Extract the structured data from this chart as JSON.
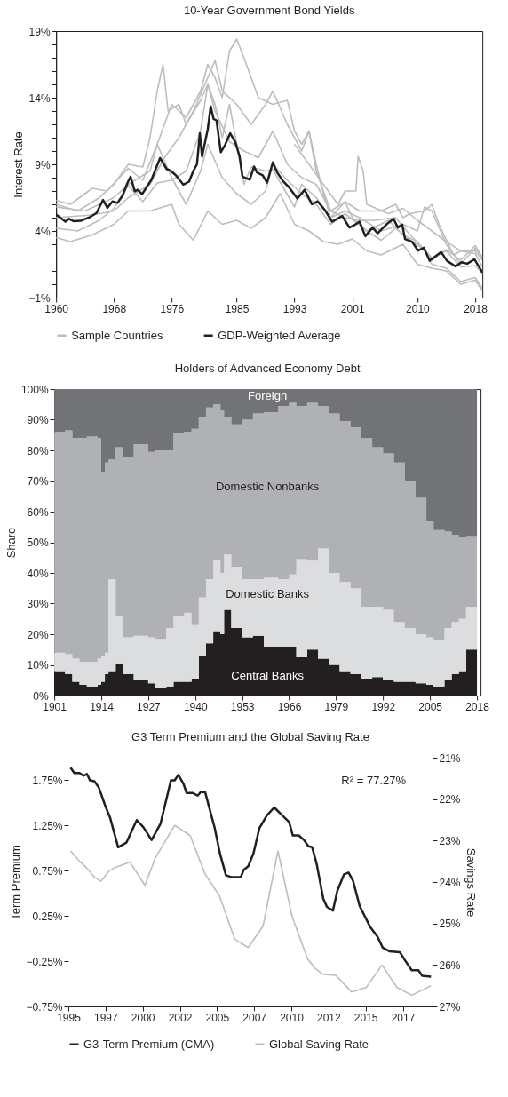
{
  "chart_data": [
    {
      "type": "line",
      "title": "10-Year Government Bond Yields",
      "ylabel": "Interest Rate",
      "legend": "bottom",
      "xlim": [
        1960,
        2019
      ],
      "xticks": [
        1960,
        1968,
        1976,
        1985,
        1993,
        2001,
        2010,
        2018
      ],
      "ylim": [
        -1,
        19
      ],
      "yticks": [
        {
          "value": -1,
          "label": "−1%"
        },
        {
          "value": 0,
          "label": null
        },
        {
          "value": 1,
          "label": null
        },
        {
          "value": 2,
          "label": null
        },
        {
          "value": 3,
          "label": null
        },
        {
          "value": 4,
          "label": "4%"
        },
        {
          "value": 5,
          "label": null
        },
        {
          "value": 6,
          "label": null
        },
        {
          "value": 7,
          "label": null
        },
        {
          "value": 8,
          "label": null
        },
        {
          "value": 9,
          "label": "9%"
        },
        {
          "value": 10,
          "label": null
        },
        {
          "value": 11,
          "label": null
        },
        {
          "value": 12,
          "label": null
        },
        {
          "value": 13,
          "label": null
        },
        {
          "value": 14,
          "label": "14%"
        },
        {
          "value": 15,
          "label": null
        },
        {
          "value": 16,
          "label": null
        },
        {
          "value": 17,
          "label": null
        },
        {
          "value": 18,
          "label": null
        },
        {
          "value": 19,
          "label": "19%"
        }
      ],
      "series": [
        {
          "name": "Sample Countries",
          "color": "#bcbdc0",
          "x": [
            1960,
            1964,
            1968,
            1970,
            1973,
            1974,
            1976,
            1978,
            1980,
            1981,
            1982,
            1983,
            1984,
            1985,
            1986,
            1987,
            1988,
            1990,
            1992,
            1993,
            1994,
            1995,
            1996,
            1997,
            1998,
            2000,
            2002,
            2005,
            2008,
            2010,
            2011,
            2012,
            2014,
            2016,
            2018,
            2019
          ],
          "values": [
            5.8,
            5.5,
            6.5,
            7.5,
            8.5,
            10.5,
            13.5,
            12.5,
            14.5,
            16.5,
            15.5,
            14,
            17.5,
            18.4,
            17,
            15.5,
            14,
            13.5,
            13.8,
            11.5,
            10.5,
            11.5,
            9,
            6.8,
            5,
            5.5,
            5,
            4,
            4.5,
            4,
            5.8,
            5.5,
            3,
            1.5,
            2.7,
            2
          ]
        },
        {
          "color": "#bcbdc0",
          "x": [
            1960,
            1963,
            1966,
            1968,
            1970,
            1972,
            1973,
            1974,
            1974.8,
            1975.5,
            1977,
            1978,
            1980,
            1981,
            1982,
            1984,
            1986,
            1988,
            1990,
            1992,
            1994,
            1996,
            1998,
            2000,
            2002,
            2004,
            2007,
            2009,
            2012,
            2014,
            2016,
            2018,
            2019
          ],
          "values": [
            6,
            5.5,
            6.5,
            7.5,
            9,
            8.8,
            11,
            14.5,
            16.5,
            13,
            13.5,
            12,
            13.8,
            15,
            13,
            10.7,
            10,
            9.5,
            11.5,
            9,
            8,
            7.5,
            5.5,
            5,
            4.8,
            4.8,
            5,
            3.7,
            2,
            2.5,
            1.3,
            1.4,
            0.8
          ]
        },
        {
          "color": "#bcbdc0",
          "x": [
            1960,
            1962,
            1965,
            1968,
            1970,
            1973,
            1976,
            1977,
            1979,
            1981,
            1983,
            1985,
            1987,
            1989,
            1991,
            1993,
            1995,
            1997,
            1999,
            2001,
            2003,
            2005,
            2008,
            2010,
            2012,
            2014,
            2016,
            2018,
            2019
          ],
          "values": [
            3.5,
            3.2,
            3.7,
            4.5,
            5.5,
            5.5,
            6,
            4.5,
            3.3,
            5.5,
            4.5,
            4.8,
            4.2,
            5,
            6.8,
            4.5,
            4,
            3.2,
            3,
            3.4,
            2.5,
            2.2,
            3,
            1.5,
            1.2,
            1,
            0,
            0.3,
            -0.5
          ]
        },
        {
          "color": "#bcbdc0",
          "x": [
            1960,
            1963,
            1966,
            1968,
            1970,
            1972,
            1974,
            1976,
            1978,
            1980,
            1981,
            1982,
            1983,
            1984,
            1986,
            1987,
            1989,
            1990,
            1993,
            1994,
            1996,
            1998,
            2000,
            2001,
            2003,
            2006,
            2008,
            2010,
            2012,
            2014,
            2016,
            2018,
            2019
          ],
          "values": [
            4.2,
            4,
            4.8,
            5.7,
            7.4,
            6.2,
            7.6,
            7.8,
            8.5,
            11.5,
            15,
            13.5,
            11,
            13.5,
            7.5,
            8.8,
            8.5,
            8.6,
            5.8,
            7.5,
            6.5,
            5,
            6.2,
            5,
            4,
            4.8,
            3.7,
            3.2,
            1.8,
            2.6,
            1.8,
            2.9,
            2
          ]
        },
        {
          "color": "#bcbdc0",
          "x": [
            1960,
            1962,
            1965,
            1967,
            1970,
            1972,
            1974,
            1976,
            1978,
            1980,
            1981,
            1983,
            1985,
            1987,
            1989,
            1990,
            1992,
            1994,
            1996,
            1998,
            2000,
            2003,
            2005,
            2007,
            2009,
            2011,
            2012,
            2014,
            2016,
            2018,
            2019
          ],
          "values": [
            6.3,
            6,
            7.2,
            7,
            8.7,
            7.8,
            10.5,
            8,
            6,
            8.5,
            10.5,
            8,
            6.8,
            6,
            7,
            9,
            7.8,
            6.8,
            6,
            4.5,
            5.3,
            4,
            3.3,
            4.2,
            3.3,
            2.6,
            1.5,
            1.2,
            0.2,
            0.5,
            -0.3
          ]
        },
        {
          "color": "#bcbdc0",
          "x": [
            1960,
            1965,
            1968,
            1970,
            1973,
            1975,
            1977,
            1979,
            1981,
            1982,
            1983,
            1985,
            1987,
            1989,
            1990,
            1992,
            1994,
            1995,
            1996,
            1998,
            2000,
            2002,
            2005,
            2007,
            2008,
            2009,
            2011,
            2012,
            2013,
            2015,
            2016,
            2018,
            2019
          ],
          "values": [
            5,
            5.2,
            5.5,
            6.5,
            7.5,
            9.5,
            11,
            13,
            15.5,
            16.8,
            14.5,
            13.5,
            12,
            13.5,
            14.5,
            12,
            10,
            11.5,
            8.5,
            5.5,
            6.2,
            5.5,
            5.5,
            6,
            5,
            5.3,
            5.5,
            6,
            4.5,
            2.2,
            2.5,
            2.3,
            1.3
          ]
        },
        {
          "color": "#bcbdc0",
          "x": [
            1993,
            1995,
            1997,
            1999,
            2000,
            2001.5,
            2001.8,
            2002.5,
            2003,
            2006,
            2008,
            2010,
            2012,
            2014,
            2016,
            2018,
            2019
          ],
          "values": [
            10.5,
            9,
            7.5,
            6,
            7,
            7,
            9.6,
            8.5,
            6,
            5.3,
            5.7,
            4.8,
            4,
            3.2,
            2.5,
            2.5,
            1.8
          ]
        },
        {
          "name": "GDP-Weighted Average",
          "color": "#231f20",
          "x": [
            1960,
            1961.3,
            1961.8,
            1962.4,
            1963.4,
            1964.6,
            1965.6,
            1966.5,
            1967.1,
            1967.8,
            1968.5,
            1969.2,
            1969.9,
            1970.3,
            1970.9,
            1971.3,
            1971.9,
            1973.2,
            1974.4,
            1975.3,
            1975.9,
            1976.6,
            1977.6,
            1978.4,
            1979,
            1979.5,
            1979.9,
            1980.2,
            1981,
            1981.4,
            1981.8,
            1982.2,
            1982.8,
            1983.4,
            1984.1,
            1984.8,
            1985.4,
            1985.8,
            1986.8,
            1987.4,
            1987.8,
            1988.6,
            1989.2,
            1990,
            1990.6,
            1991.4,
            1992.2,
            1993.4,
            1994.4,
            1995.4,
            1996.2,
            1997.2,
            1998.2,
            1999.6,
            2000.6,
            2001.4,
            2002,
            2002.8,
            2003.8,
            2004.5,
            2005.7,
            2006.7,
            2007.3,
            2007.9,
            2008.3,
            2009.3,
            2010.1,
            2010.9,
            2011.7,
            2013.3,
            2014.1,
            2015.3,
            2016.1,
            2016.9,
            2017.9,
            2019
          ],
          "values": [
            5.24,
            4.7,
            4.91,
            4.74,
            4.76,
            5.02,
            5.35,
            6.33,
            5.74,
            6.22,
            6.11,
            6.65,
            7.63,
            8.07,
            6.98,
            7.09,
            6.76,
            7.85,
            9.48,
            8.65,
            8.5,
            8.17,
            7.48,
            7.7,
            8.5,
            9,
            11.33,
            9.59,
            11.65,
            13.35,
            12.41,
            12.3,
            9.91,
            10.46,
            11.33,
            10.67,
            9.59,
            8.07,
            7.85,
            8.83,
            8.39,
            8.17,
            7.63,
            9.15,
            8.39,
            7.74,
            7.3,
            6.43,
            7.09,
            6,
            6.22,
            5.57,
            4.7,
            5.13,
            4.26,
            4.48,
            4.7,
            3.61,
            4.26,
            3.83,
            4.48,
            4.91,
            4.26,
            4.48,
            3.39,
            3.17,
            2.52,
            2.74,
            1.76,
            2.41,
            1.76,
            1.33,
            1.65,
            1.54,
            1.87,
            0.89
          ]
        }
      ]
    },
    {
      "type": "area",
      "stacked": true,
      "title": "Holders of Advanced Economy Debt",
      "ylabel": "Share",
      "legend": false,
      "x": [
        1901,
        1904,
        1906,
        1908,
        1910,
        1913,
        1914,
        1915,
        1916,
        1918,
        1920,
        1923,
        1927,
        1929,
        1932,
        1934,
        1937,
        1939,
        1941,
        1943,
        1945,
        1947,
        1948,
        1950,
        1953,
        1956,
        1959,
        1963,
        1966,
        1968,
        1971,
        1974,
        1977,
        1980,
        1983,
        1986,
        1989,
        1992,
        1995,
        1998,
        2001,
        2004,
        2006,
        2009,
        2011,
        2013,
        2015,
        2018
      ],
      "xlim": [
        1901,
        2019
      ],
      "xticks": [
        1901,
        1914,
        1927,
        1940,
        1953,
        1966,
        1979,
        1992,
        2005,
        2018
      ],
      "ylim": [
        0,
        100
      ],
      "yticks": [
        {
          "value": 0,
          "label": "0%"
        },
        {
          "value": 10,
          "label": "10%"
        },
        {
          "value": 20,
          "label": "20%"
        },
        {
          "value": 30,
          "label": "30%"
        },
        {
          "value": 40,
          "label": "40%"
        },
        {
          "value": 50,
          "label": "50%"
        },
        {
          "value": 60,
          "label": "60%"
        },
        {
          "value": 70,
          "label": "70%"
        },
        {
          "value": 80,
          "label": "80%"
        },
        {
          "value": 90,
          "label": "90%"
        },
        {
          "value": 100,
          "label": "100%"
        }
      ],
      "series": [
        {
          "name": "Central Banks",
          "color": "#231f20",
          "values": [
            8,
            7,
            4.5,
            3.5,
            3,
            3.5,
            4.5,
            7,
            8,
            10.5,
            7,
            5,
            4,
            2.5,
            3,
            4.5,
            4.5,
            5.5,
            13,
            17,
            21,
            20,
            28,
            22,
            19,
            19.5,
            16,
            16,
            16,
            12.5,
            15,
            12,
            10,
            8,
            7,
            5.5,
            6,
            5,
            4.5,
            4.5,
            4,
            3.5,
            3,
            5,
            7,
            8,
            15,
            18.5
          ]
        },
        {
          "name": "Domestic Banks",
          "color": "#dcdddf",
          "values": [
            6,
            6.5,
            7.5,
            7.5,
            8,
            8.5,
            8.5,
            7,
            30,
            15.5,
            12,
            14.5,
            15,
            16,
            19,
            21.5,
            22.5,
            17.5,
            19,
            21,
            23,
            20,
            18,
            20,
            19,
            18.5,
            22.5,
            22,
            23.5,
            32,
            29,
            36,
            30,
            29,
            28,
            23.5,
            23,
            23,
            19.5,
            17.5,
            16,
            15.5,
            15,
            17,
            17,
            17,
            14,
            12.5
          ]
        },
        {
          "name": "Domestic Nonbanks",
          "color": "#b0b1b4",
          "values": [
            72,
            73,
            72,
            73,
            73.5,
            72,
            60,
            62,
            39,
            55,
            59,
            62.5,
            60.5,
            61.5,
            58,
            59.5,
            59,
            64,
            59,
            56,
            51,
            53,
            45,
            46.5,
            52,
            54,
            54,
            56.5,
            56,
            50,
            51.5,
            46.5,
            52,
            52.5,
            52.5,
            55,
            52,
            51,
            52,
            48,
            44.5,
            38,
            36,
            31.5,
            28.5,
            26.5,
            23,
            24
          ]
        },
        {
          "name": "Foreign",
          "color": "#727376",
          "values": [
            14,
            13.5,
            16,
            16,
            15.5,
            16,
            27,
            24,
            23,
            19,
            22,
            18,
            20.5,
            20,
            20,
            14.5,
            14,
            13,
            9,
            6,
            5,
            7,
            9,
            11.5,
            10,
            8,
            7.5,
            5.5,
            4.5,
            5.5,
            4.5,
            5.5,
            8,
            10.5,
            12.5,
            16,
            19,
            21,
            24,
            30,
            35.5,
            43,
            46,
            46.5,
            47.5,
            48.5,
            48,
            45
          ]
        }
      ]
    },
    {
      "type": "line",
      "title": "G3 Term Premium and the Global Saving Rate",
      "ylabel": "Term Premium",
      "y2label": "Savings Rate",
      "legend": "bottom",
      "annotations": [
        "R² = 77.27%"
      ],
      "xlim": [
        1995,
        2019.5
      ],
      "xticks": [
        {
          "value": 1995,
          "label": "1995"
        },
        {
          "value": 1997.5,
          "label": "1997"
        },
        {
          "value": 2000,
          "label": "2000"
        },
        {
          "value": 2002.5,
          "label": "2002"
        },
        {
          "value": 2005,
          "label": "2005"
        },
        {
          "value": 2007.5,
          "label": "2007"
        },
        {
          "value": 2010,
          "label": "2010"
        },
        {
          "value": 2012.5,
          "label": "2012"
        },
        {
          "value": 2015,
          "label": "2015"
        },
        {
          "value": 2017.5,
          "label": "2017"
        }
      ],
      "ylim": [
        -0.75,
        2.0
      ],
      "yticks": [
        {
          "value": -0.75,
          "label": "−0.75%"
        },
        {
          "value": -0.25,
          "label": "−0.25%"
        },
        {
          "value": 0.25,
          "label": "0.25%"
        },
        {
          "value": 0.75,
          "label": "0.75%"
        },
        {
          "value": 1.25,
          "label": "1.25%"
        },
        {
          "value": 1.75,
          "label": "1.75%"
        }
      ],
      "y2lim": [
        27,
        21
      ],
      "y2ticks": [
        {
          "value": 21,
          "label": "21%"
        },
        {
          "value": 22,
          "label": "22%"
        },
        {
          "value": 23,
          "label": "23%"
        },
        {
          "value": 24,
          "label": "24%"
        },
        {
          "value": 25,
          "label": "25%"
        },
        {
          "value": 26,
          "label": "26%"
        },
        {
          "value": 27,
          "label": "27%"
        }
      ],
      "series": [
        {
          "name": "G3-Term Premium (CMA)",
          "color": "#231f20",
          "x": [
            1995.15,
            1995.4,
            1995.75,
            1996,
            1996.25,
            1996.45,
            1996.75,
            1997.05,
            1997.5,
            1997.8,
            1998.35,
            1998.9,
            1999.6,
            2000.05,
            2000.6,
            2001.2,
            2001.9,
            2002.15,
            2002.4,
            2002.75,
            2002.95,
            2003.35,
            2003.7,
            2003.9,
            2004.2,
            2004.85,
            2005.2,
            2005.6,
            2005.95,
            2006.6,
            2006.8,
            2007.1,
            2007.45,
            2007.85,
            2008.35,
            2008.85,
            2009.4,
            2009.85,
            2010.1,
            2010.5,
            2010.85,
            2011.15,
            2011.4,
            2011.7,
            2012.15,
            2012.4,
            2012.8,
            2013.1,
            2013.55,
            2013.85,
            2014.15,
            2014.6,
            2015.3,
            2015.8,
            2016.15,
            2016.6,
            2017.3,
            2017.65,
            2018.1,
            2018.55,
            2018.8,
            2019.4
          ],
          "values": [
            1.89,
            1.83,
            1.83,
            1.8,
            1.82,
            1.75,
            1.74,
            1.67,
            1.46,
            1.34,
            1.01,
            1.06,
            1.31,
            1.23,
            1.09,
            1.27,
            1.75,
            1.75,
            1.81,
            1.71,
            1.61,
            1.61,
            1.58,
            1.62,
            1.62,
            1.22,
            0.94,
            0.7,
            0.68,
            0.68,
            0.76,
            0.8,
            0.94,
            1.22,
            1.36,
            1.45,
            1.36,
            1.29,
            1.14,
            1.14,
            1.09,
            1.02,
            1.01,
            0.83,
            0.44,
            0.35,
            0.31,
            0.53,
            0.71,
            0.73,
            0.64,
            0.36,
            0.13,
            0.02,
            -0.1,
            -0.14,
            -0.15,
            -0.24,
            -0.35,
            -0.35,
            -0.41,
            -0.42
          ]
        },
        {
          "name": "Global Saving Rate",
          "color": "#bcbdc0",
          "axis": "y2",
          "x": [
            1995.15,
            1995.65,
            1996.2,
            1996.75,
            1997.2,
            1997.75,
            1998.15,
            1999.15,
            2000.15,
            2000.85,
            2002.15,
            2003.2,
            2004.2,
            2005.15,
            2006.2,
            2007.1,
            2008.1,
            2009.1,
            2010.05,
            2011.1,
            2011.6,
            2012.15,
            2013,
            2014.05,
            2015.05,
            2016.1,
            2017.1,
            2018.1,
            2019.4
          ],
          "values": [
            23.25,
            23.46,
            23.65,
            23.88,
            23.98,
            23.73,
            23.65,
            23.52,
            24.08,
            23.42,
            22.63,
            22.88,
            23.81,
            24.32,
            25.38,
            25.58,
            25.06,
            23.25,
            24.83,
            25.86,
            26.08,
            26.23,
            26.25,
            26.65,
            26.54,
            26,
            26.54,
            26.73,
            26.5
          ]
        }
      ]
    }
  ]
}
